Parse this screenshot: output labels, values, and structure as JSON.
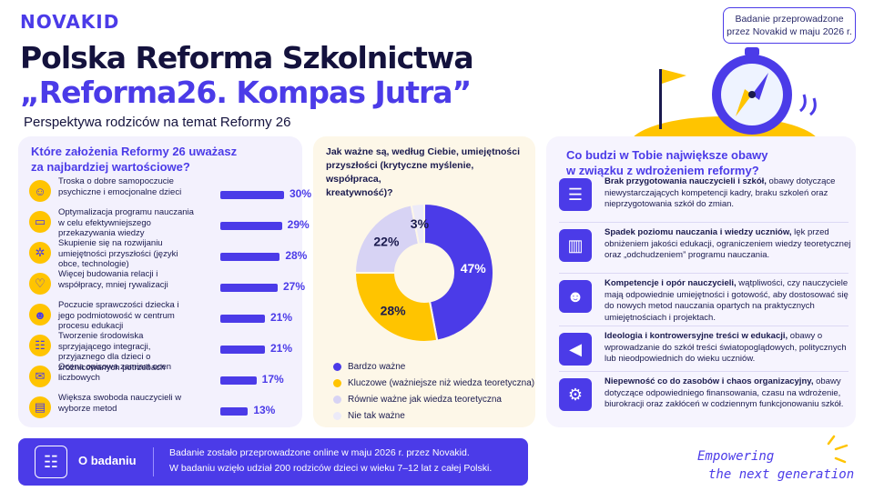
{
  "brand": "NOVAKID",
  "title_line1": "Polska Reforma Szkolnictwa",
  "title_line2": "„Reforma26. Kompas Jutra”",
  "subtitle": "Perspektywa rodziców na temat Reformy 26",
  "badge_line1": "Badanie przeprowadzone",
  "badge_line2": "przez Novakid w maju 2026 r.",
  "panel1": {
    "title_line1": "Które założenia Reformy 26 uważasz",
    "title_line2": "za najbardziej wartościowe?",
    "items": [
      {
        "label": "Troska o dobre samopoczucie psychiczne i emocjonalne dzieci",
        "value": "30%",
        "pct": 30,
        "icon": "person-heart-icon",
        "glyph": "☺"
      },
      {
        "label": "Optymalizacja programu nauczania w celu efektywniejszego przekazywania wiedzy",
        "value": "29%",
        "pct": 29,
        "icon": "laptop-icon",
        "glyph": "▭"
      },
      {
        "label": "Skupienie się na rozwijaniu umiejętności przyszłości (języki obce, technologie)",
        "value": "28%",
        "pct": 28,
        "icon": "gear-people-icon",
        "glyph": "✲"
      },
      {
        "label": "Więcej budowania relacji i współpracy, mniej rywalizacji",
        "value": "27%",
        "pct": 27,
        "icon": "heart-icon",
        "glyph": "♡"
      },
      {
        "label": "Poczucie sprawczości dziecka i jego podmiotowość w centrum procesu edukacji",
        "value": "21%",
        "pct": 21,
        "icon": "child-icon",
        "glyph": "☻"
      },
      {
        "label": "Tworzenie środowiska sprzyjającego integracji, przyjaznego dla dzieci o zróżnicowanych potrzebach",
        "value": "21%",
        "pct": 21,
        "icon": "group-icon",
        "glyph": "☷"
      },
      {
        "label": "Ocena opisowa zamiast ocen liczbowych",
        "value": "17%",
        "pct": 17,
        "icon": "speech-bubble-icon",
        "glyph": "✉"
      },
      {
        "label": "Większa swoboda nauczycieli w wyborze metod",
        "value": "13%",
        "pct": 13,
        "icon": "book-icon",
        "glyph": "▤"
      }
    ]
  },
  "panel2": {
    "title": "Jak ważne są, według Ciebie, umiejętności przyszłości (krytyczne myślenie, współpraca, kreatywność)?",
    "title_line1": "Jak ważne są, według Ciebie, umiejętności",
    "title_line2": "przyszłości (krytyczne myślenie, współpraca,",
    "title_line3": "kreatywność)?"
  },
  "chart_data": {
    "type": "pie",
    "categories": [
      "Bardzo ważne",
      "Kluczowe (ważniejsze niż wiedza teoretyczna)",
      "Równie ważne jak wiedza teoretyczna",
      "Nie tak ważne"
    ],
    "values": [
      47,
      28,
      22,
      3
    ],
    "labels": [
      "47%",
      "28%",
      "22%",
      "3%"
    ],
    "colors": [
      "#4b3be8",
      "#ffc400",
      "#d7d3f4",
      "#eceaf8"
    ],
    "donut": true,
    "legend_position": "bottom"
  },
  "panel3": {
    "title_line1": "Co budzi w Tobie największe obawy",
    "title_line2": "w związku z wdrożeniem reformy?",
    "items": [
      {
        "bold": "Brak przygotowania nauczycieli i szkół,",
        "text": " obawy dotyczące niewystarczających kompetencji kadry, braku szkoleń oraz nieprzygotowania szkół do zmian.",
        "icon": "checklist-icon",
        "glyph": "☰"
      },
      {
        "bold": "Spadek poziomu nauczania i wiedzy uczniów,",
        "text": " lęk przed obniżeniem jakości edukacji, ograniczeniem wiedzy teoretycznej oraz „odchudzeniem” programu nauczania.",
        "icon": "declining-chart-icon",
        "glyph": "▥"
      },
      {
        "bold": "Kompetencje i opór nauczycieli,",
        "text": " wątpliwości, czy nauczyciele mają odpowiednie umiejętności i gotowość, aby dostosować się do nowych metod nauczania opartych na praktycznych umiejętnościach i projektach.",
        "icon": "teacher-icon",
        "glyph": "☻"
      },
      {
        "bold": "Ideologia i kontrowersyjne treści w edukacji,",
        "text": " obawy o wprowadzanie do szkół treści światopoglądowych, politycznych lub nieodpowiednich do wieku uczniów.",
        "icon": "megaphone-icon",
        "glyph": "◀"
      },
      {
        "bold": "Niepewność co do zasobów i chaos organizacyjny,",
        "text": " obawy dotyczące odpowiedniego finansowania, czasu na wdrożenie, biurokracji oraz zakłóceń w codziennym funkcjonowaniu szkół.",
        "icon": "gear-icon",
        "glyph": "⚙"
      }
    ]
  },
  "footer": {
    "label": "O badaniu",
    "line1": "Badanie zostało przeprowadzone online w maju 2026 r. przez Novakid.",
    "line2": "W badaniu wzięło udział 200 rodziców dzieci w wieku 7–12 lat z całej Polski."
  },
  "tagline_line1": "Empowering",
  "tagline_line2": "the next generation"
}
